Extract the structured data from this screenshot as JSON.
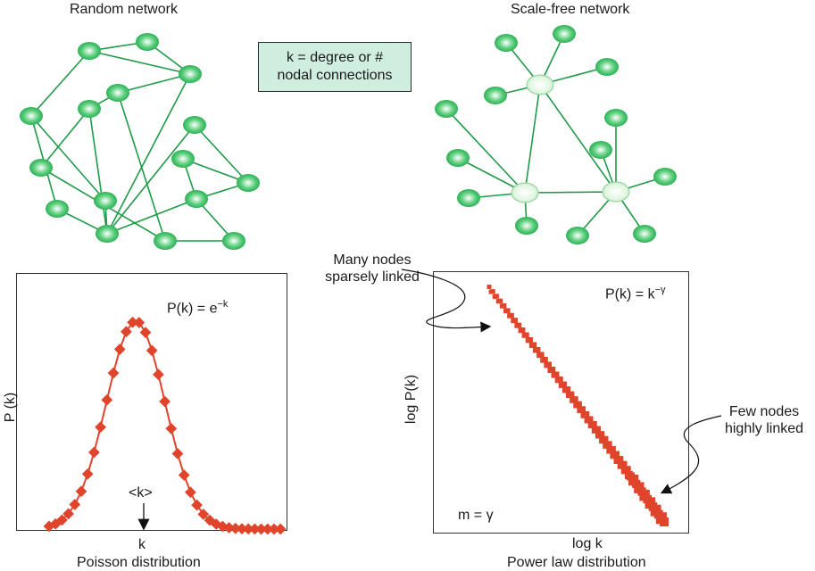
{
  "random_network": {
    "title": "Random network"
  },
  "scale_free_network": {
    "title": "Scale-free network"
  },
  "definition": {
    "line1": "k = degree or #",
    "line2": "nodal connections"
  },
  "poisson_plot": {
    "formula_base": "P(k) = e",
    "formula_exp": "−k",
    "ylabel": "P (k)",
    "mean_label": "<k>",
    "xlabel": "k",
    "caption": "Poisson distribution"
  },
  "power_plot": {
    "formula_base": "P(k) = k",
    "formula_exp": "−γ",
    "ylabel": "log P(k)",
    "xlabel": "log k",
    "caption": "Power law distribution",
    "slope_note": "m = γ",
    "annotation_sparse": [
      "Many nodes",
      "sparsely linked"
    ],
    "annotation_hubs": [
      "Few nodes",
      "highly linked"
    ]
  },
  "colors": {
    "node": "#3cbf6b",
    "hub": "#d8f2d8",
    "edge": "#1f9a48",
    "data": "#e0452c",
    "box": "#cfeee0"
  }
}
